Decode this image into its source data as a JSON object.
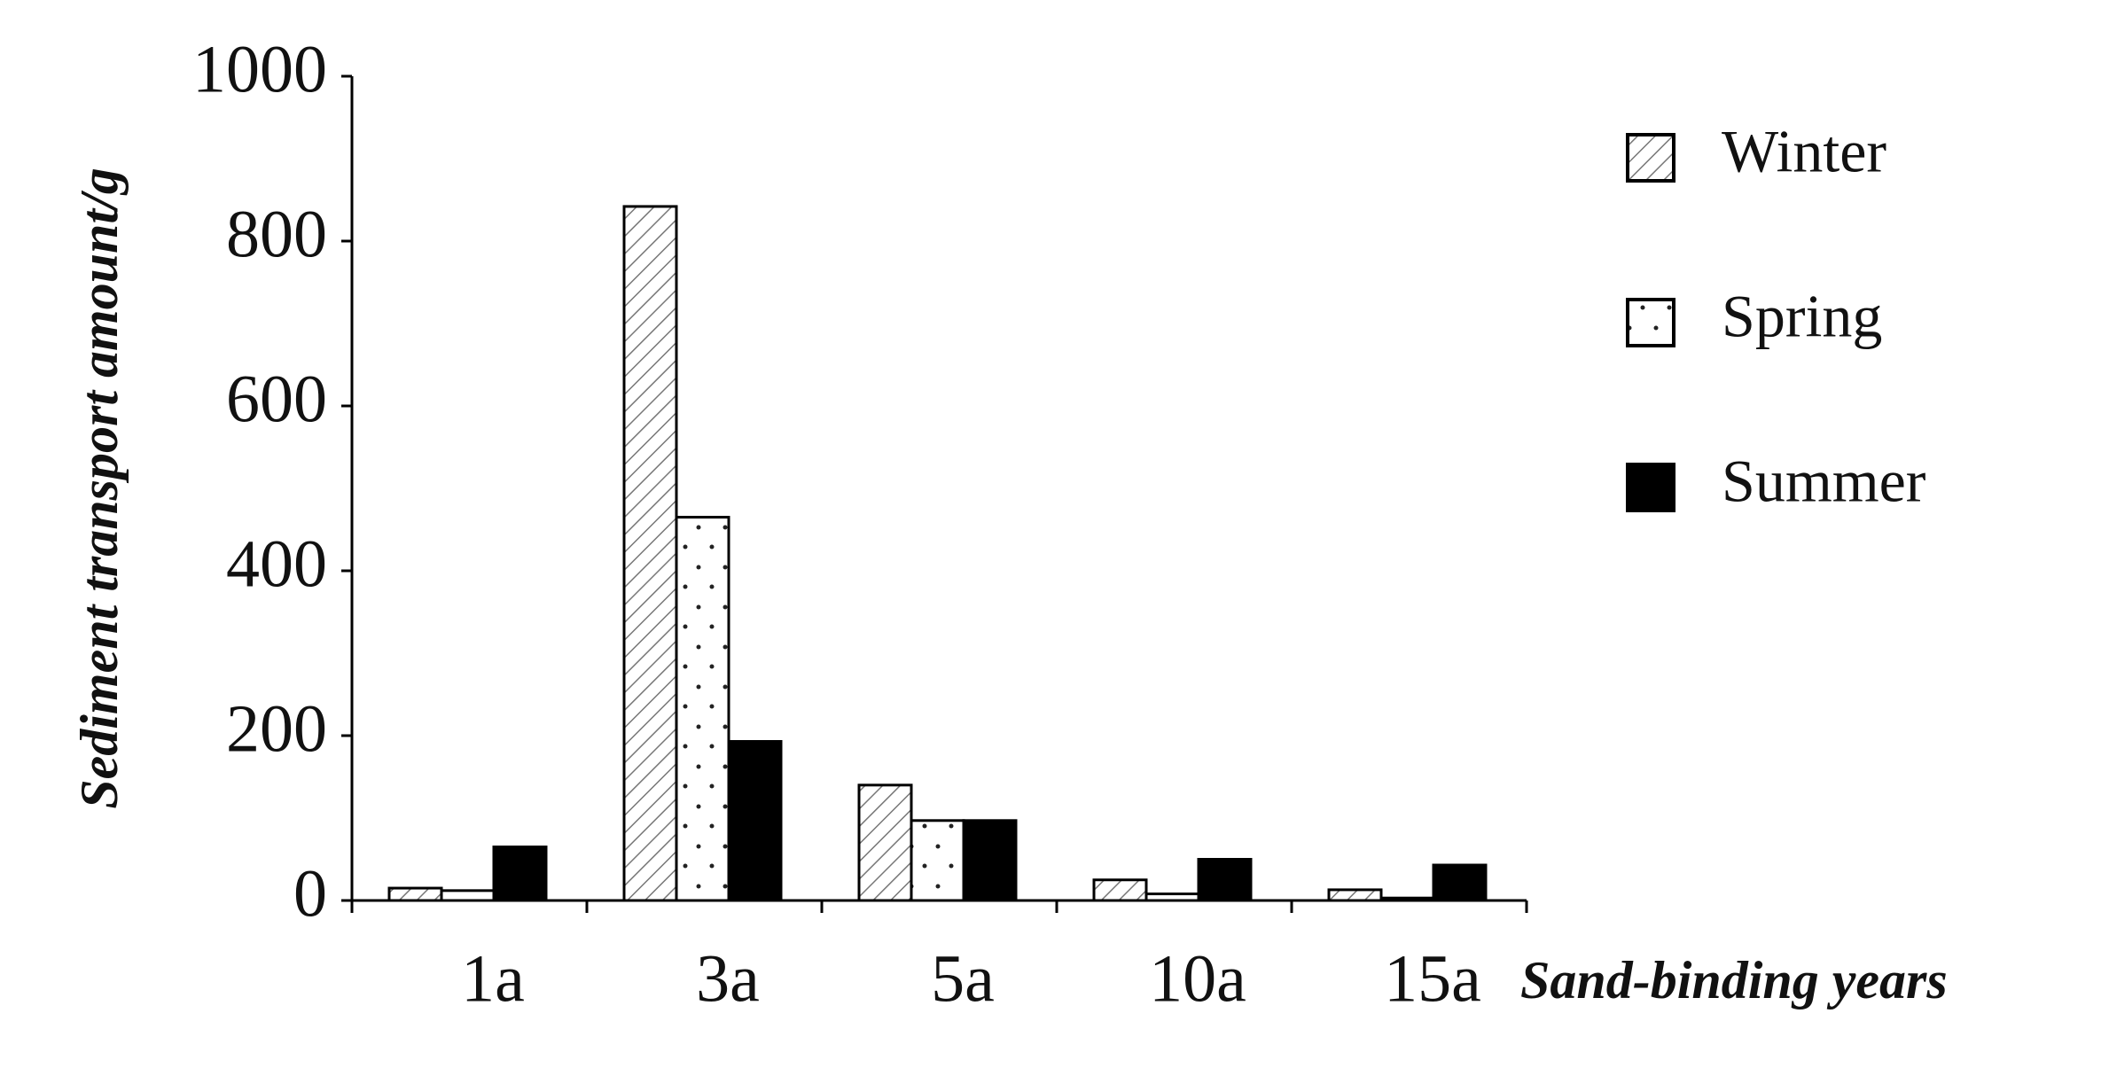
{
  "chart_data": {
    "type": "bar",
    "y_label": "Sediment transport amount/g",
    "x_label": "Sand-binding years",
    "categories": [
      "1a",
      "3a",
      "5a",
      "10a",
      "15a"
    ],
    "series": [
      {
        "name": "Winter",
        "color": "#ffffff",
        "pattern": "hatch",
        "values": [
          15,
          842,
          140,
          25,
          13
        ]
      },
      {
        "name": "Spring",
        "color": "#ffffff",
        "pattern": "dots",
        "values": [
          12,
          465,
          97,
          8,
          3
        ]
      },
      {
        "name": "Summer",
        "color": "#000000",
        "pattern": "solid",
        "values": [
          65,
          193,
          97,
          50,
          43
        ]
      }
    ],
    "ylim": [
      0,
      1000
    ],
    "yticks": [
      0,
      200,
      400,
      600,
      800,
      1000
    ],
    "grid": false,
    "legend": "right"
  }
}
